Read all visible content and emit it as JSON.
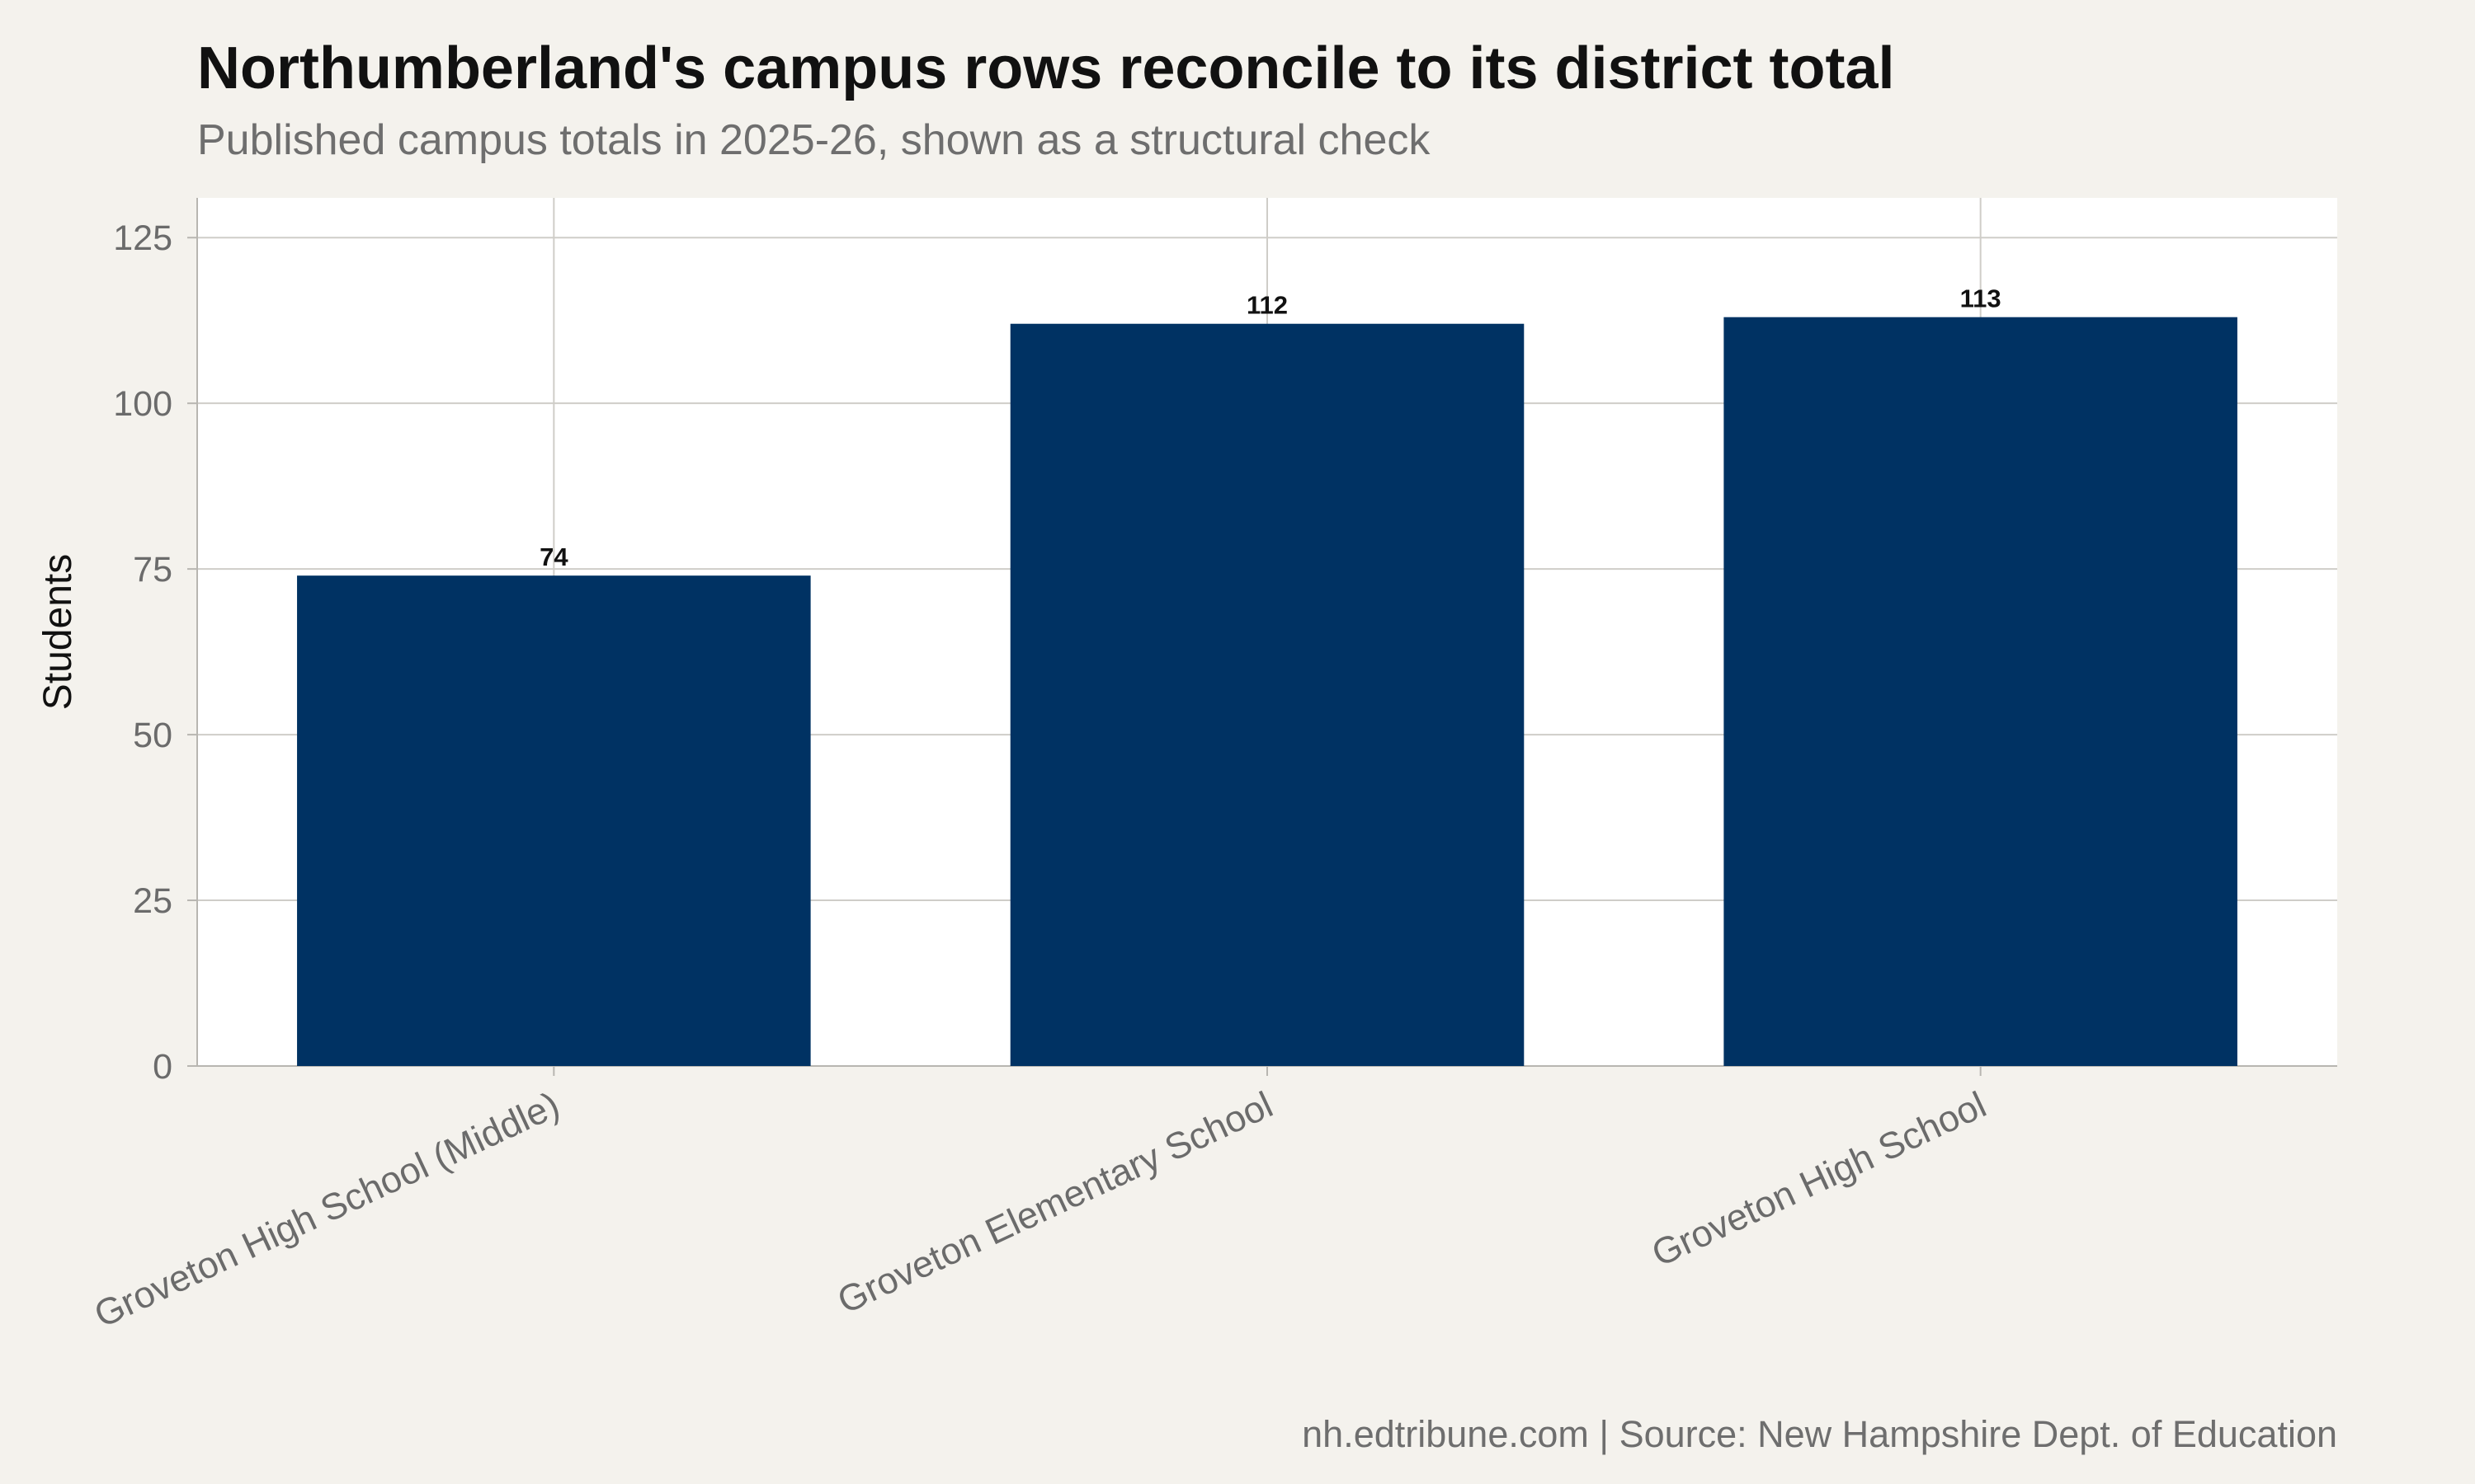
{
  "header": {
    "title": "Northumberland's campus rows reconcile to its district total",
    "subtitle": "Published campus totals in 2025-26, shown as a structural check"
  },
  "footer": {
    "source": "nh.edtribune.com | Source: New Hampshire Dept. of Education"
  },
  "colors": {
    "bar": "#003263",
    "panel": "#ffffff",
    "page_background": "#f4f2ed",
    "grid": "#cfcdc8"
  },
  "chart_data": {
    "type": "bar",
    "title": "Northumberland's campus rows reconcile to its district total",
    "subtitle": "Published campus totals in 2025-26, shown as a structural check",
    "xlabel": "",
    "ylabel": "Students",
    "categories": [
      "Groveton High School (Middle)",
      "Groveton Elementary School",
      "Groveton High School"
    ],
    "values": [
      74,
      112,
      113
    ],
    "data_labels": [
      "74",
      "112",
      "113"
    ],
    "ylim": [
      0,
      131
    ],
    "yticks": [
      0,
      25,
      50,
      75,
      100,
      125
    ],
    "grid": true,
    "legend": "none"
  }
}
